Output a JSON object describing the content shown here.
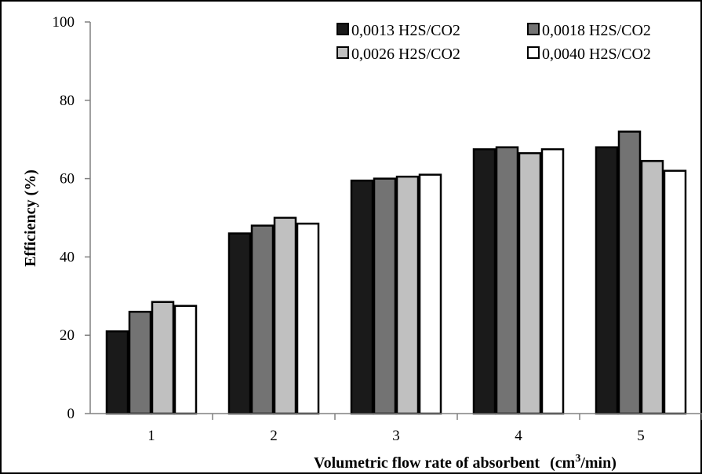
{
  "chart_data": {
    "type": "bar",
    "title": "",
    "xlabel": "Volumetric flow rate of absorbent",
    "xlabel_unit_prefix": "(cm",
    "xlabel_unit_sup": "3",
    "xlabel_unit_suffix": "/min)",
    "ylabel": "Efficiency (%)",
    "ylim": [
      0,
      100
    ],
    "yticks": [
      "0",
      "20",
      "40",
      "60",
      "80",
      "100"
    ],
    "categories": [
      "1",
      "2",
      "3",
      "4",
      "5"
    ],
    "legend_position": "top-right",
    "grid": false,
    "series": [
      {
        "name": "0,0013 H2S/CO2",
        "color": "#1a1a1a",
        "values": [
          21,
          46,
          59.5,
          67.5,
          68
        ]
      },
      {
        "name": "0,0018 H2S/CO2",
        "color": "#737373",
        "values": [
          26,
          48,
          60,
          68,
          72
        ]
      },
      {
        "name": "0,0026 H2S/CO2",
        "color": "#c0c0c0",
        "values": [
          28.5,
          50,
          60.5,
          66.5,
          64.5
        ]
      },
      {
        "name": "0,0040 H2S/CO2",
        "color": "#ffffff",
        "values": [
          27.5,
          48.5,
          61,
          67.5,
          62
        ]
      }
    ]
  }
}
